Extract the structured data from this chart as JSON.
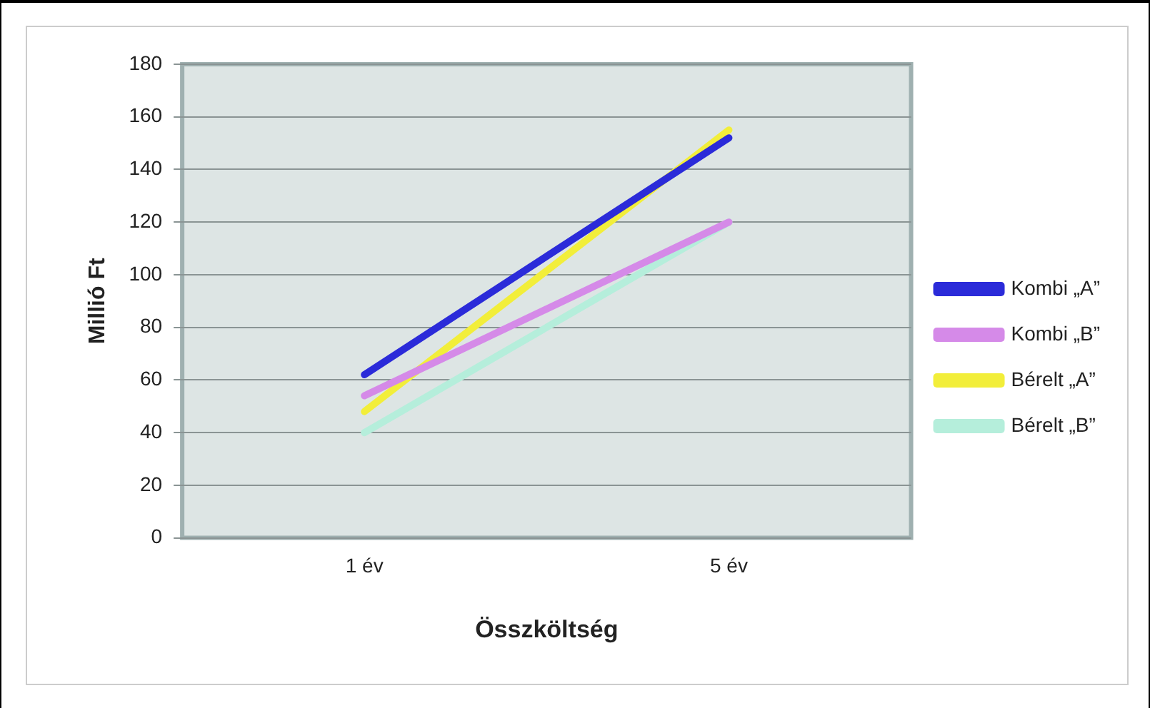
{
  "chart_data": {
    "type": "line",
    "xlabel": "Összköltség",
    "ylabel": "Millió Ft",
    "categories": [
      "1 év",
      "5 év"
    ],
    "series": [
      {
        "name": "Kombi „A”",
        "color": "#2b2bd9",
        "values": [
          62,
          152
        ]
      },
      {
        "name": "Kombi „B”",
        "color": "#d58ae8",
        "values": [
          54,
          120
        ]
      },
      {
        "name": "Bérelt „A”",
        "color": "#f2ee3a",
        "values": [
          48,
          155
        ]
      },
      {
        "name": "Bérelt „B”",
        "color": "#b5eedb",
        "values": [
          40,
          120
        ]
      }
    ],
    "ylim": [
      0,
      180
    ],
    "yticks": [
      0,
      20,
      40,
      60,
      80,
      100,
      120,
      140,
      160,
      180
    ],
    "grid": "y",
    "legend": "right",
    "marker": "none"
  }
}
